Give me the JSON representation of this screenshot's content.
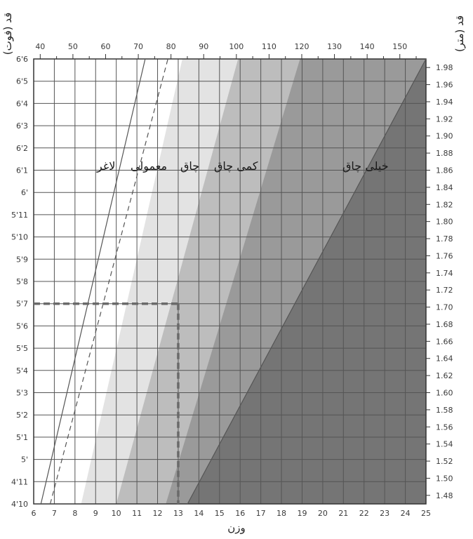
{
  "chart_data": {
    "type": "area",
    "title": "",
    "left_axis": {
      "label": "قد (فوت)",
      "tick_labels": [
        "4'10",
        "4'11",
        "5'",
        "5'1",
        "5'2",
        "5'3",
        "5'4",
        "5'5",
        "5'6",
        "5'7",
        "5'8",
        "5'9",
        "5'10",
        "5'11",
        "6'",
        "6'1",
        "6'2",
        "6'3",
        "6'4",
        "6'5",
        "6'6"
      ],
      "range_inches": [
        58,
        78
      ]
    },
    "right_axis": {
      "label": "قد (متر)",
      "tick_labels": [
        "1.48",
        "1.50",
        "1.52",
        "1.54",
        "1.56",
        "1.58",
        "1.60",
        "1.62",
        "1.64",
        "1.66",
        "1.68",
        "1.70",
        "1.72",
        "1.74",
        "1.76",
        "1.78",
        "1.80",
        "1.82",
        "1.84",
        "1.86",
        "1.88",
        "1.90",
        "1.92",
        "1.94",
        "1.96",
        "1.98"
      ],
      "range": [
        1.47,
        1.99
      ]
    },
    "top_axis": {
      "tick_labels": [
        "40",
        "50",
        "60",
        "70",
        "80",
        "90",
        "100",
        "110",
        "120",
        "130",
        "140",
        "150"
      ],
      "range": [
        38,
        158
      ]
    },
    "bottom_axis": {
      "label": "وزن",
      "tick_labels": [
        "6",
        "7",
        "8",
        "9",
        "10",
        "11",
        "12",
        "13",
        "14",
        "15",
        "16",
        "17",
        "18",
        "19",
        "20",
        "21",
        "22",
        "23",
        "24",
        "25"
      ],
      "range": [
        6,
        25
      ]
    },
    "zones": [
      {
        "label": "لاغر",
        "color": "#ffffff"
      },
      {
        "label": "معمولی",
        "color": "#e3e3e3"
      },
      {
        "label": "چاق",
        "color": "#bdbdbd"
      },
      {
        "label": "کمی چاق",
        "color": "#9a9a9a"
      },
      {
        "label": "خیلی چاق",
        "color": "#757575"
      }
    ],
    "boundaries": [
      {
        "name": "underweight_limit",
        "style": "solid",
        "bottom_weight": 6.35,
        "top_weight": 11.4
      },
      {
        "name": "ideal_mid",
        "style": "dashed",
        "bottom_weight": 6.8,
        "top_weight": 12.5
      },
      {
        "name": "normal_limit",
        "style": "none",
        "bottom_weight": 8.3,
        "top_weight": 13.2
      },
      {
        "name": "overweight_limit",
        "style": "none",
        "bottom_weight": 10.0,
        "top_weight": 15.9
      },
      {
        "name": "obese_limit",
        "style": "none",
        "bottom_weight": 12.4,
        "top_weight": 18.9
      },
      {
        "name": "very_obese_line",
        "style": "solid",
        "bottom_weight": 13.45,
        "top_weight": 25.0
      }
    ],
    "example_marker": {
      "height_label": "5'7",
      "height_inches": 67,
      "weight": 13,
      "style": "dashed"
    },
    "grid": true
  },
  "colors": {
    "grid": "#555555",
    "axis": "#333333",
    "marker": "#6a6a6a"
  }
}
